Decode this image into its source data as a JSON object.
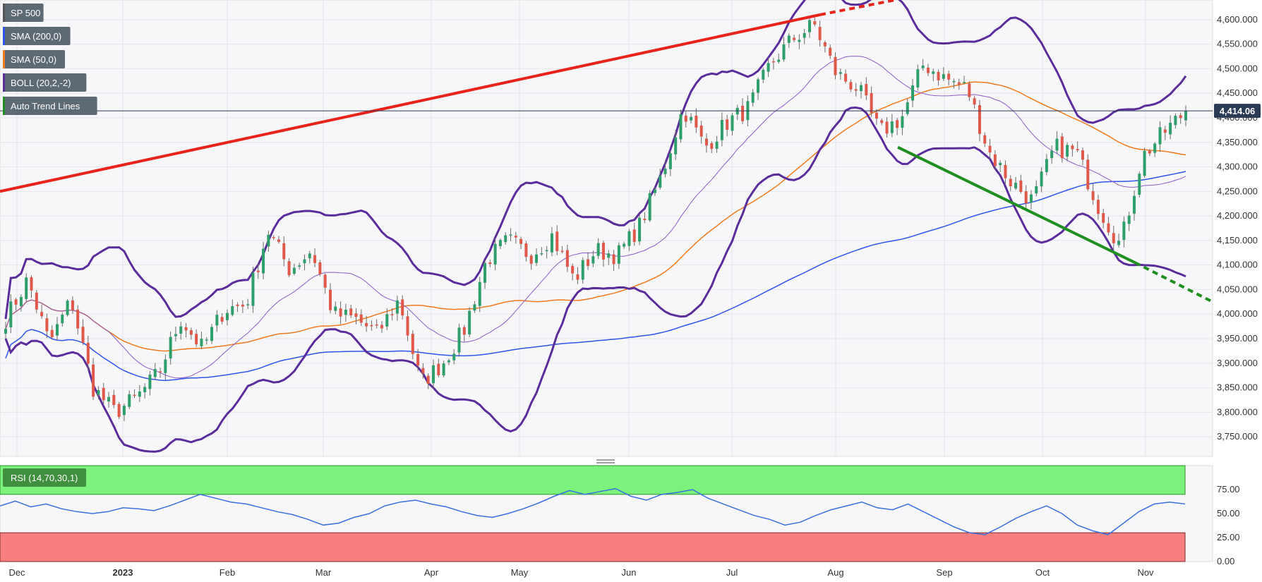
{
  "chart_data": [
    {
      "type": "candlestick",
      "title": "SP 500",
      "timeframe": "daily",
      "x_labels": [
        "Dec",
        "2023",
        "Feb",
        "Mar",
        "Apr",
        "May",
        "Jun",
        "Jul",
        "Aug",
        "Sep",
        "Oct",
        "Nov"
      ],
      "y_ticks": [
        3750,
        3800,
        3850,
        3900,
        3950,
        4000,
        4050,
        4100,
        4150,
        4200,
        4250,
        4300,
        4350,
        4400,
        4450,
        4500,
        4550,
        4600
      ],
      "ylim": [
        3710,
        4640
      ],
      "last_price": 4414.06,
      "last_price_label": "4,414.06",
      "legend": [
        {
          "label": "SP 500",
          "color": "#555555"
        },
        {
          "label": "SMA (200,0)",
          "color": "#2f54eb"
        },
        {
          "label": "SMA (50,0)",
          "color": "#f07a1e"
        },
        {
          "label": "BOLL (20,2,-2)",
          "color": "#5b2c9b"
        },
        {
          "label": "Auto Trend Lines",
          "color": "#1f8f1f"
        }
      ],
      "anchors": [
        {
          "month": "Dec",
          "close": 3990
        },
        {
          "month": "Dec",
          "close": 4070
        },
        {
          "month": "Dec",
          "close": 3940
        },
        {
          "month": "Dec",
          "close": 4030
        },
        {
          "month": "Dec",
          "close": 3850
        },
        {
          "month": "Dec",
          "close": 3800
        },
        {
          "month": "2023",
          "close": 3830
        },
        {
          "month": "2023",
          "close": 3880
        },
        {
          "month": "2023",
          "close": 3990
        },
        {
          "month": "2023",
          "close": 3930
        },
        {
          "month": "2023",
          "close": 4010
        },
        {
          "month": "2023",
          "close": 4020
        },
        {
          "month": "Feb",
          "close": 4170
        },
        {
          "month": "Feb",
          "close": 4090
        },
        {
          "month": "Feb",
          "close": 4130
        },
        {
          "month": "Feb",
          "close": 4000
        },
        {
          "month": "Feb",
          "close": 3990
        },
        {
          "month": "Mar",
          "close": 3960
        },
        {
          "month": "Mar",
          "close": 4030
        },
        {
          "month": "Mar",
          "close": 3860
        },
        {
          "month": "Mar",
          "close": 3900
        },
        {
          "month": "Mar",
          "close": 3970
        },
        {
          "month": "Apr",
          "close": 4110
        },
        {
          "month": "Apr",
          "close": 4150
        },
        {
          "month": "Apr",
          "close": 4120
        },
        {
          "month": "Apr",
          "close": 4160
        },
        {
          "month": "May",
          "close": 4070
        },
        {
          "month": "May",
          "close": 4130
        },
        {
          "month": "May",
          "close": 4120
        },
        {
          "month": "May",
          "close": 4180
        },
        {
          "month": "Jun",
          "close": 4280
        },
        {
          "month": "Jun",
          "close": 4420
        },
        {
          "month": "Jun",
          "close": 4340
        },
        {
          "month": "Jun",
          "close": 4390
        },
        {
          "month": "Jul",
          "close": 4420
        },
        {
          "month": "Jul",
          "close": 4510
        },
        {
          "month": "Jul",
          "close": 4560
        },
        {
          "month": "Jul",
          "close": 4590
        },
        {
          "month": "Aug",
          "close": 4490
        },
        {
          "month": "Aug",
          "close": 4460
        },
        {
          "month": "Aug",
          "close": 4370
        },
        {
          "month": "Aug",
          "close": 4400
        },
        {
          "month": "Sep",
          "close": 4510
        },
        {
          "month": "Sep",
          "close": 4480
        },
        {
          "month": "Sep",
          "close": 4460
        },
        {
          "month": "Sep",
          "close": 4330
        },
        {
          "month": "Sep",
          "close": 4270
        },
        {
          "month": "Oct",
          "close": 4230
        },
        {
          "month": "Oct",
          "close": 4340
        },
        {
          "month": "Oct",
          "close": 4330
        },
        {
          "month": "Oct",
          "close": 4220
        },
        {
          "month": "Oct",
          "close": 4140
        },
        {
          "month": "Nov",
          "close": 4320
        },
        {
          "month": "Nov",
          "close": 4370
        },
        {
          "month": "Nov",
          "close": 4414
        }
      ],
      "trend_lines": [
        {
          "name": "resistance",
          "color": "#e8231b",
          "start_price": 4250,
          "end_price": 4610,
          "extends_dashed": true
        },
        {
          "name": "support",
          "color": "#1f8f1f",
          "start_price": 4340,
          "end_price": 4105,
          "extends_dashed": true
        }
      ]
    },
    {
      "type": "line",
      "title": "RSI (14,70,30,1)",
      "y_ticks": [
        0,
        25,
        50,
        75
      ],
      "y_tick_labels": [
        "0.00",
        "25.00",
        "50.00",
        "75.00"
      ],
      "ylim": [
        0,
        100
      ],
      "overbought": 70,
      "oversold": 30,
      "color": "#3a6fe0",
      "values": [
        58,
        63,
        57,
        60,
        55,
        52,
        50,
        52,
        56,
        55,
        53,
        58,
        64,
        70,
        66,
        62,
        60,
        56,
        52,
        49,
        44,
        38,
        40,
        46,
        50,
        58,
        62,
        64,
        60,
        57,
        52,
        48,
        46,
        50,
        55,
        61,
        68,
        74,
        70,
        73,
        76,
        68,
        64,
        70,
        72,
        75,
        66,
        60,
        54,
        48,
        44,
        38,
        41,
        48,
        54,
        58,
        62,
        56,
        54,
        60,
        52,
        44,
        36,
        30,
        28,
        36,
        45,
        52,
        58,
        50,
        38,
        32,
        28,
        40,
        52,
        60,
        62,
        60
      ]
    }
  ]
}
